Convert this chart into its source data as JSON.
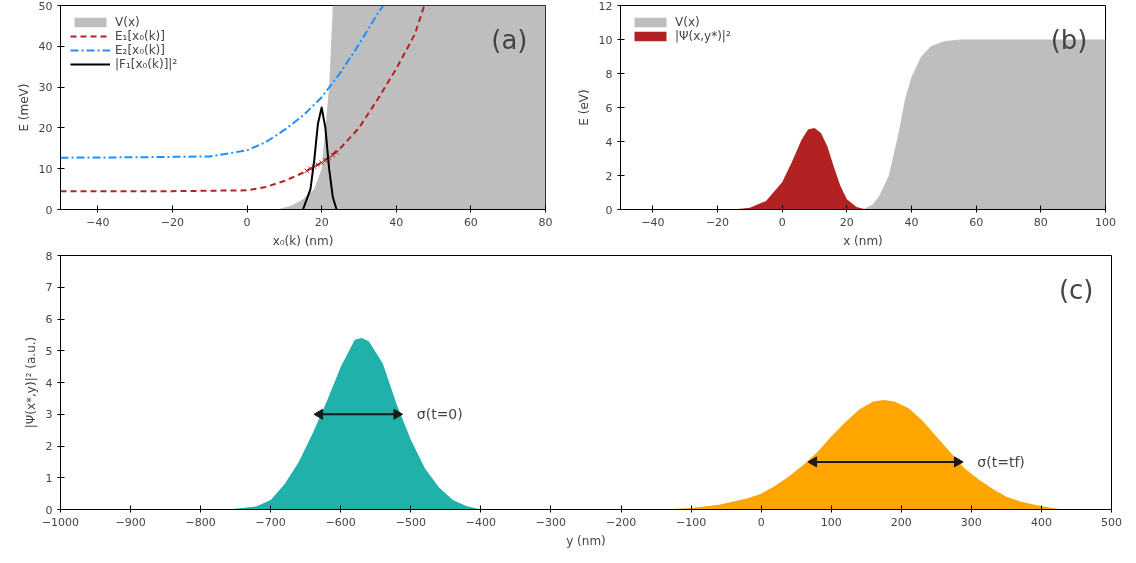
{
  "chart_data": [
    {
      "type": "line",
      "xlabel": "x₀(k) (nm)",
      "ylabel": "E (meV)",
      "xlim": [
        -50,
        80
      ],
      "ylim": [
        0,
        50
      ],
      "xticks": [
        -40,
        -20,
        0,
        20,
        40,
        60,
        80
      ],
      "yticks": [
        0,
        10,
        20,
        30,
        40,
        50
      ],
      "grid": false,
      "legend": "top left",
      "annotations": [
        "(a)"
      ],
      "series": [
        {
          "name": "V(x)",
          "type": "area",
          "color": "#bebebe",
          "x": [
            -50,
            8,
            10,
            12,
            15,
            18,
            20,
            21,
            22,
            23,
            80
          ],
          "values": [
            0,
            0,
            0.5,
            1,
            2.5,
            5,
            10,
            20,
            30,
            50,
            50
          ]
        },
        {
          "name": "E₁[x₀(k)]",
          "type": "line",
          "line_style": "dashed",
          "color": "#b22222",
          "x": [
            -50,
            -20,
            0,
            5,
            10,
            15,
            20,
            25,
            30,
            35,
            40,
            45,
            47.5
          ],
          "values": [
            4.5,
            4.5,
            4.7,
            5.5,
            7,
            9,
            11.5,
            15,
            20,
            27,
            34.5,
            43,
            50
          ]
        },
        {
          "name": "E₂[x₀(k)]",
          "type": "line",
          "line_style": "dashdot",
          "color": "#1e90ff",
          "x": [
            -50,
            -30,
            -10,
            0,
            5,
            10,
            15,
            20,
            25,
            30,
            35,
            36.5
          ],
          "values": [
            12.7,
            12.8,
            13,
            14.5,
            16.5,
            19.5,
            23,
            27.5,
            33.5,
            40.5,
            48,
            50
          ]
        },
        {
          "type": "scatter",
          "marker": "cross",
          "color": "#b22222",
          "x": [
            16,
            17,
            18,
            19,
            20,
            21,
            22,
            23,
            24
          ],
          "values": [
            9.5,
            10,
            10.5,
            11,
            11.5,
            12,
            12.7,
            13.3,
            14
          ]
        },
        {
          "name": "|F₁[x₀(k)]|²",
          "type": "line",
          "line_style": "solid",
          "color": "#000000",
          "x": [
            15,
            17,
            18,
            19,
            20,
            21,
            22,
            23,
            24
          ],
          "values": [
            0,
            5,
            12,
            21,
            25,
            20,
            10,
            3,
            0
          ]
        }
      ]
    },
    {
      "type": "area",
      "xlabel": "x (nm)",
      "ylabel": "E (eV)",
      "xlim": [
        -50,
        100
      ],
      "ylim": [
        0,
        12
      ],
      "xticks": [
        -40,
        -20,
        0,
        20,
        40,
        60,
        80,
        100
      ],
      "yticks": [
        0,
        2,
        4,
        6,
        8,
        10,
        12
      ],
      "grid": false,
      "legend": "top left",
      "annotations": [
        "(b)"
      ],
      "series": [
        {
          "name": "V(x)",
          "color": "#bebebe",
          "x": [
            -50,
            25,
            28,
            30,
            33,
            36,
            38,
            40,
            43,
            46,
            50,
            55,
            100
          ],
          "values": [
            0,
            0,
            0.3,
            0.8,
            2,
            4.5,
            6.5,
            7.8,
            9,
            9.6,
            9.9,
            10,
            10
          ]
        },
        {
          "name": "|Ψ(x,y*)|²",
          "color": "#b22222",
          "x": [
            -50,
            -15,
            -10,
            -5,
            0,
            3,
            6,
            8,
            10,
            12,
            14,
            16,
            18,
            20,
            23,
            26,
            100
          ],
          "values": [
            0,
            0,
            0.1,
            0.5,
            1.6,
            2.8,
            4.1,
            4.7,
            4.8,
            4.5,
            3.7,
            2.5,
            1.4,
            0.6,
            0.15,
            0,
            0
          ]
        }
      ]
    },
    {
      "type": "area",
      "xlabel": "y (nm)",
      "ylabel": "|Ψ(x*,y)|² (a.u.)",
      "xlim": [
        -1000,
        500
      ],
      "ylim": [
        0,
        8
      ],
      "xticks": [
        -1000,
        -900,
        -800,
        -700,
        -600,
        -500,
        -400,
        -300,
        -200,
        -100,
        0,
        100,
        200,
        300,
        400,
        500
      ],
      "yticks": [
        0,
        1,
        2,
        3,
        4,
        5,
        6,
        7,
        8
      ],
      "grid": false,
      "annotations": [
        "(c)",
        {
          "text": "σ(t=0)",
          "x": -520,
          "y": 3
        },
        {
          "text": "σ(t=tf)",
          "x": 280,
          "y": 1.5
        }
      ],
      "series": [
        {
          "color": "#20b2aa",
          "x": [
            -760,
            -720,
            -700,
            -680,
            -660,
            -640,
            -620,
            -600,
            -580,
            -570,
            -560,
            -540,
            -520,
            -500,
            -480,
            -460,
            -440,
            -420,
            -400
          ],
          "values": [
            0,
            0.1,
            0.3,
            0.8,
            1.5,
            2.4,
            3.4,
            4.5,
            5.35,
            5.4,
            5.3,
            4.6,
            3.3,
            2.2,
            1.3,
            0.7,
            0.3,
            0.1,
            0
          ]
        },
        {
          "color": "#ffa500",
          "x": [
            -140,
            -100,
            -60,
            -20,
            0,
            20,
            40,
            60,
            80,
            100,
            120,
            140,
            160,
            175,
            190,
            210,
            230,
            250,
            270,
            290,
            310,
            330,
            350,
            370,
            400,
            430,
            480
          ],
          "values": [
            0,
            0.05,
            0.15,
            0.35,
            0.5,
            0.75,
            1.05,
            1.4,
            1.8,
            2.3,
            2.75,
            3.15,
            3.4,
            3.45,
            3.4,
            3.2,
            2.8,
            2.3,
            1.8,
            1.3,
            0.95,
            0.65,
            0.4,
            0.25,
            0.1,
            0,
            0
          ]
        },
        {
          "type": "line",
          "marker": "triangle",
          "line_style": "solid",
          "color": "#1a1a1a",
          "x": [
            -630,
            -575,
            -520
          ],
          "values": [
            3,
            3,
            3
          ]
        },
        {
          "type": "line",
          "marker": "triangle",
          "line_style": "solid",
          "color": "#1a1a1a",
          "x": [
            75,
            177,
            280
          ],
          "values": [
            1.5,
            1.5,
            1.5
          ]
        }
      ]
    }
  ]
}
